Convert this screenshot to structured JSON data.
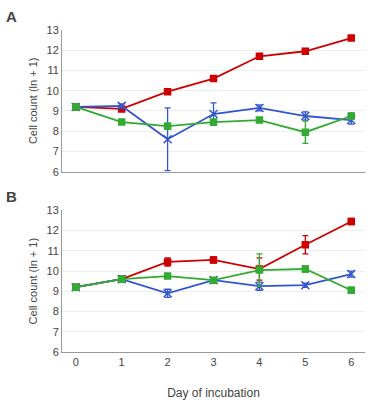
{
  "chart_data": [
    {
      "type": "line",
      "title": "A",
      "ylabel": "Cell count (ln + 1)",
      "x": [
        0,
        1,
        2,
        3,
        4,
        5,
        6
      ],
      "series": [
        {
          "color": "#cc0000",
          "marker": "square",
          "values": [
            9.2,
            9.1,
            9.95,
            10.6,
            11.7,
            11.95,
            12.6
          ],
          "yerr": [
            0.05,
            0.07,
            0.08,
            0.1,
            0.12,
            0.1,
            0.1
          ]
        },
        {
          "color": "#3355cc",
          "marker": "x",
          "values": [
            9.2,
            9.25,
            7.6,
            8.85,
            9.15,
            8.75,
            8.55
          ],
          "yerr": [
            0.05,
            0.1,
            1.55,
            0.55,
            0.15,
            0.2,
            0.2
          ]
        },
        {
          "color": "#33aa33",
          "marker": "square",
          "values": [
            9.2,
            8.45,
            8.25,
            8.45,
            8.55,
            7.95,
            8.75
          ],
          "yerr": [
            0.05,
            0.1,
            0.15,
            0.1,
            0.1,
            0.55,
            0.15
          ]
        }
      ],
      "xlim": [
        -0.3,
        6.3
      ],
      "xticks": [
        0,
        1,
        2,
        3,
        4,
        5,
        6
      ],
      "ylim": [
        6,
        13
      ],
      "yticks": [
        6,
        7,
        8,
        9,
        10,
        11,
        12,
        13
      ],
      "grid": true,
      "tick_labels": "y"
    },
    {
      "type": "line",
      "title": "B",
      "ylabel": "Cell count (ln + 1)",
      "xlabel": "Day of incubation",
      "x": [
        0,
        1,
        2,
        3,
        4,
        5,
        6
      ],
      "series": [
        {
          "color": "#cc0000",
          "marker": "square",
          "values": [
            9.2,
            9.6,
            10.45,
            10.55,
            10.1,
            11.3,
            12.45
          ],
          "yerr": [
            0.05,
            0.1,
            0.2,
            0.15,
            0.55,
            0.45,
            0.15
          ]
        },
        {
          "color": "#3355cc",
          "marker": "x",
          "values": [
            9.2,
            9.6,
            8.9,
            9.55,
            9.25,
            9.3,
            9.85
          ],
          "yerr": [
            0.05,
            0.15,
            0.2,
            0.1,
            0.2,
            0.1,
            0.15
          ]
        },
        {
          "color": "#33aa33",
          "marker": "square",
          "values": [
            9.2,
            9.6,
            9.75,
            9.55,
            10.05,
            10.1,
            9.05
          ],
          "yerr": [
            0.05,
            0.1,
            0.1,
            0.1,
            0.8,
            0.15,
            0.15
          ]
        }
      ],
      "xlim": [
        -0.3,
        6.3
      ],
      "xticks": [
        0,
        1,
        2,
        3,
        4,
        5,
        6
      ],
      "ylim": [
        6,
        13
      ],
      "yticks": [
        6,
        7,
        8,
        9,
        10,
        11,
        12,
        13
      ],
      "grid": true
    }
  ]
}
